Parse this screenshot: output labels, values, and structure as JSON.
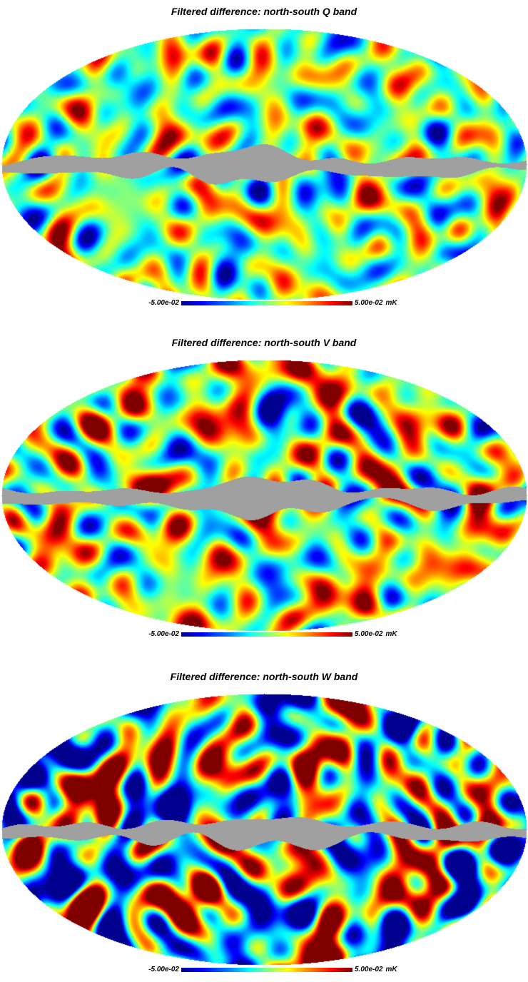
{
  "panels": [
    {
      "title": "Filtered difference: north-south Q band",
      "band": "Q",
      "scale_min": "-5.00e-02",
      "scale_max": "5.00e-02",
      "unit": "mK",
      "level": 0.0,
      "intensity": 0.9
    },
    {
      "title": "Filtered difference: north-south V band",
      "band": "V",
      "scale_min": "-5.00e-02",
      "scale_max": "5.00e-02",
      "unit": "mK",
      "level": 0.05,
      "intensity": 1.1
    },
    {
      "title": "Filtered difference: north-south W band",
      "band": "W",
      "scale_min": "-5.00e-02",
      "scale_max": "5.00e-02",
      "unit": "mK",
      "level": 0.0,
      "intensity": 1.9
    }
  ],
  "colors": {
    "mask": "#a0a0a0",
    "colormap": [
      "#00008f",
      "#0000ff",
      "#0080ff",
      "#00ffff",
      "#80ff80",
      "#ffff00",
      "#ff8000",
      "#ff0000",
      "#800000"
    ]
  }
}
